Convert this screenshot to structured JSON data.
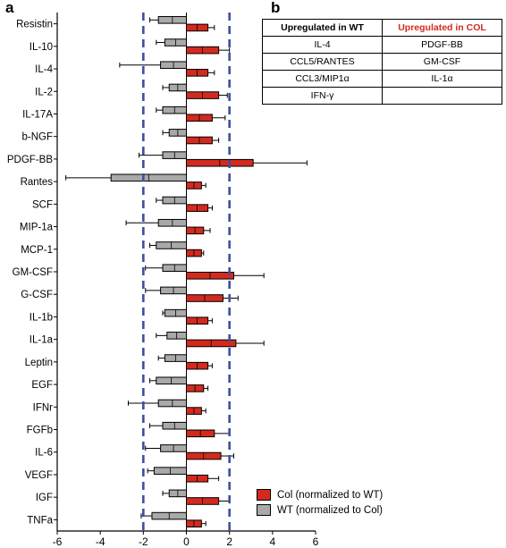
{
  "panels": {
    "a": "a",
    "b": "b"
  },
  "chart_data": {
    "type": "bar",
    "orientation": "horizontal",
    "categories": [
      "Resistin",
      "IL-10",
      "IL-4",
      "IL-2",
      "IL-17A",
      "b-NGF",
      "PDGF-BB",
      "Rantes",
      "SCF",
      "MIP-1a",
      "MCP-1",
      "GM-CSF",
      "G-CSF",
      "IL-1b",
      "IL-1a",
      "Leptin",
      "EGF",
      "IFNr",
      "FGFb",
      "IL-6",
      "VEGF",
      "IGF",
      "TNFa"
    ],
    "series": [
      {
        "name": "Col (normalized to WT)",
        "color": "#d32a1e",
        "values": [
          1.0,
          1.5,
          1.0,
          1.5,
          1.2,
          1.2,
          3.1,
          0.7,
          1.0,
          0.8,
          0.7,
          2.2,
          1.7,
          1.0,
          2.3,
          1.0,
          0.8,
          0.7,
          1.3,
          1.6,
          1.0,
          1.5,
          0.7
        ],
        "errors": [
          0.3,
          0.5,
          0.3,
          0.4,
          0.6,
          0.3,
          2.5,
          0.2,
          0.2,
          0.3,
          0.1,
          1.4,
          0.7,
          0.2,
          1.3,
          0.2,
          0.2,
          0.2,
          0.7,
          0.6,
          0.5,
          0.5,
          0.2
        ]
      },
      {
        "name": "WT (normalized to Col)",
        "color": "#a9a9a9",
        "values": [
          -1.3,
          -1.0,
          -1.2,
          -0.8,
          -1.1,
          -0.8,
          -1.1,
          -3.5,
          -1.1,
          -1.3,
          -1.4,
          -1.1,
          -1.2,
          -1.0,
          -0.9,
          -1.0,
          -1.4,
          -1.3,
          -1.1,
          -1.2,
          -1.5,
          -0.8,
          -1.6
        ],
        "errors": [
          0.4,
          0.4,
          1.9,
          0.3,
          0.3,
          0.3,
          1.1,
          2.1,
          0.3,
          1.5,
          0.3,
          0.8,
          0.7,
          0.1,
          0.5,
          0.3,
          0.3,
          1.4,
          0.6,
          0.7,
          0.3,
          0.3,
          0.5
        ]
      }
    ],
    "xlim": [
      -6,
      6
    ],
    "xticks": [
      "-6",
      "-4",
      "-2",
      "0",
      "2",
      "4",
      "6"
    ],
    "reference_lines": [
      -2,
      2
    ],
    "reference_line_color": "#3c4fa3",
    "legend_position": "bottom-right",
    "xlabel": "",
    "ylabel": ""
  },
  "table_b": {
    "headers": [
      "Upregulated in WT",
      "Upregulated in COL"
    ],
    "header_colors": [
      "#000000",
      "#d32a1e"
    ],
    "rows": [
      [
        "IL-4",
        "PDGF-BB"
      ],
      [
        "CCL5/RANTES",
        "GM-CSF"
      ],
      [
        "CCL3/MIP1α",
        "IL-1α"
      ],
      [
        "IFN-γ",
        ""
      ]
    ]
  }
}
